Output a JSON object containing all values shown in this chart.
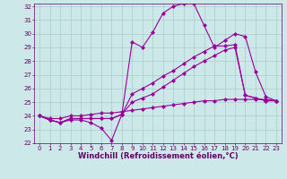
{
  "background_color": "#cce8e8",
  "grid_color": "#aacccc",
  "line_color": "#990099",
  "xlim": [
    -0.5,
    23.5
  ],
  "ylim": [
    22,
    32.2
  ],
  "yticks": [
    22,
    23,
    24,
    25,
    26,
    27,
    28,
    29,
    30,
    31,
    32
  ],
  "xticks": [
    0,
    1,
    2,
    3,
    4,
    5,
    6,
    7,
    8,
    9,
    10,
    11,
    12,
    13,
    14,
    15,
    16,
    17,
    18,
    19,
    20,
    21,
    22,
    23
  ],
  "xlabel": "Windchill (Refroidissement éolien,°C)",
  "series": [
    [
      24.0,
      23.7,
      23.5,
      23.7,
      23.7,
      23.5,
      23.1,
      22.2,
      24.1,
      29.4,
      29.0,
      30.1,
      31.5,
      32.0,
      32.2,
      32.2,
      30.6,
      29.0,
      29.5,
      30.0,
      29.8,
      27.2,
      25.4,
      25.1
    ],
    [
      24.0,
      23.7,
      23.5,
      23.8,
      23.8,
      23.8,
      23.8,
      23.8,
      24.1,
      25.6,
      26.0,
      26.4,
      26.9,
      27.3,
      27.8,
      28.3,
      28.7,
      29.1,
      29.1,
      29.2,
      25.5,
      25.3,
      25.1,
      25.1
    ],
    [
      24.0,
      23.7,
      23.5,
      23.8,
      23.8,
      23.8,
      23.8,
      23.8,
      24.1,
      25.0,
      25.3,
      25.6,
      26.1,
      26.6,
      27.1,
      27.6,
      28.0,
      28.4,
      28.8,
      29.0,
      25.5,
      25.3,
      25.1,
      25.1
    ],
    [
      24.0,
      23.8,
      23.8,
      24.0,
      24.0,
      24.1,
      24.2,
      24.2,
      24.3,
      24.4,
      24.5,
      24.6,
      24.7,
      24.8,
      24.9,
      25.0,
      25.1,
      25.1,
      25.2,
      25.2,
      25.2,
      25.2,
      25.2,
      25.1
    ]
  ],
  "marker": "D",
  "markersize": 2.0,
  "linewidth": 0.8,
  "tick_labelsize": 5.0,
  "xlabel_fontsize": 6.0,
  "xlabel_fontweight": "bold"
}
